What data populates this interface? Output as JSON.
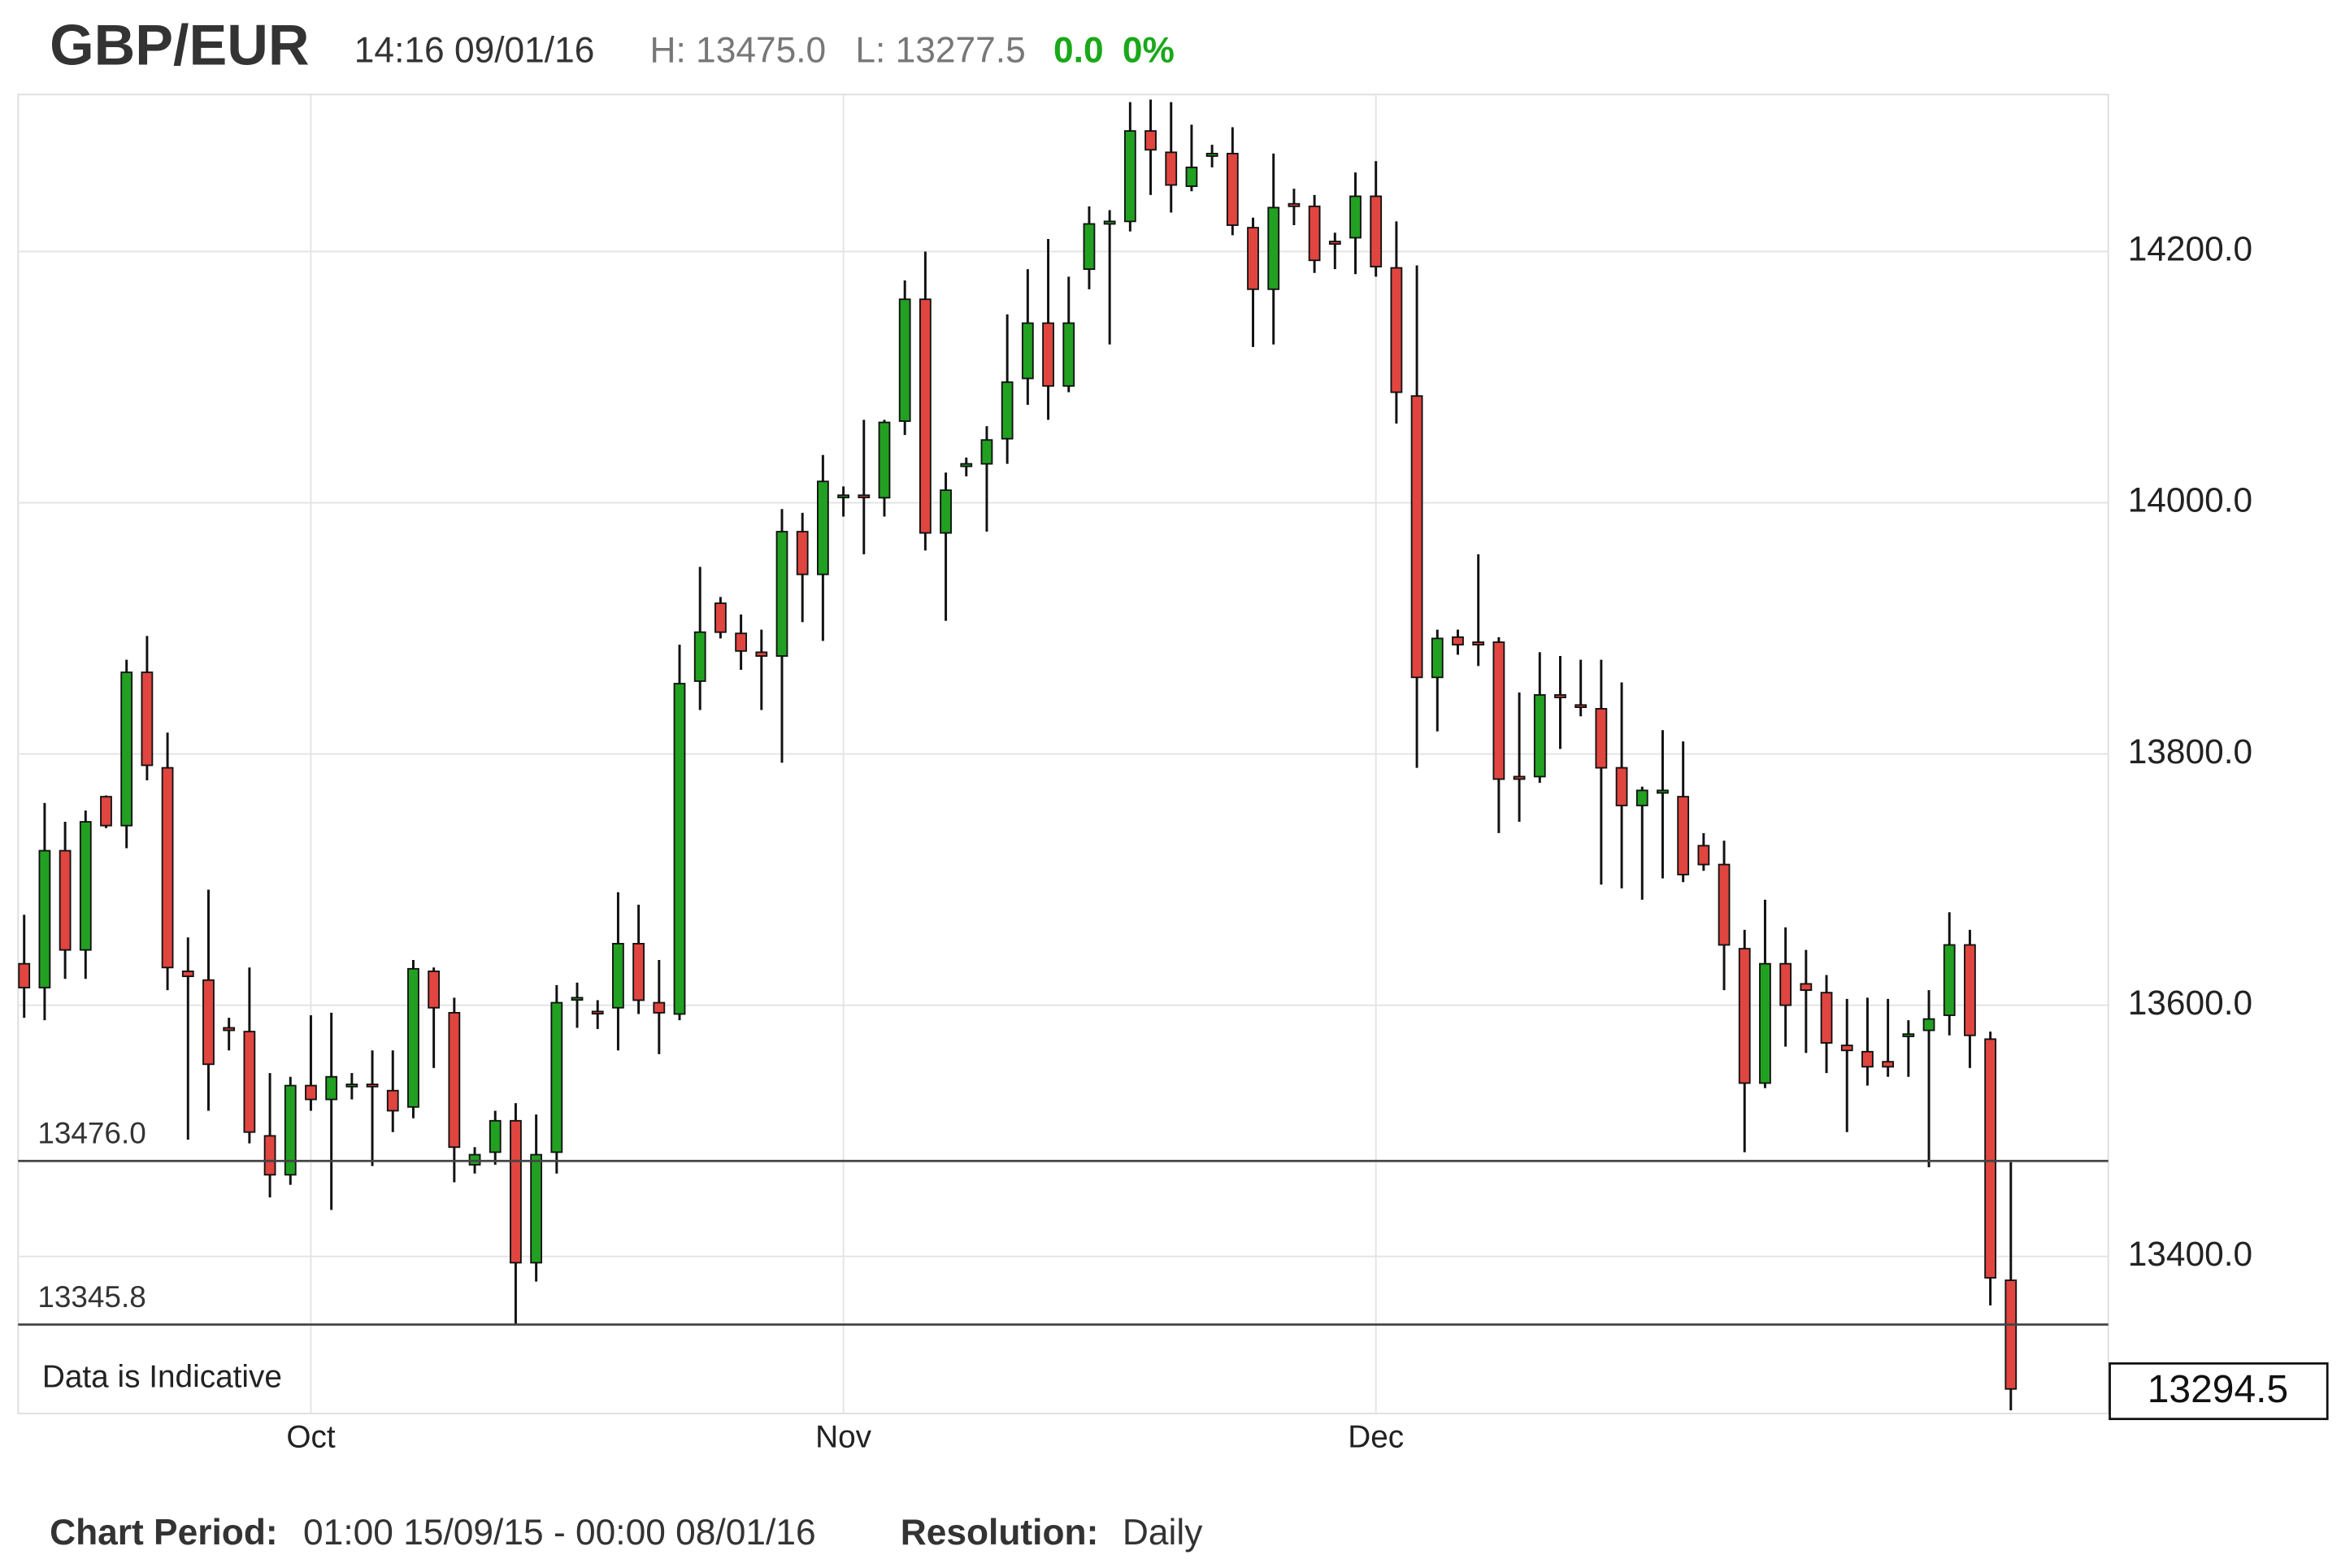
{
  "header": {
    "title": "GBP/EUR",
    "time": "14:16 09/01/16",
    "high": "H: 13475.0",
    "low": "L: 13277.5",
    "change": "0.0",
    "change_pct": "0%"
  },
  "footer": {
    "period_label": "Chart Period:",
    "period": "01:00 15/09/15 - 00:00 08/01/16",
    "resolution_label": "Resolution:",
    "resolution": "Daily"
  },
  "chart_data": {
    "type": "candlestick",
    "note": "Data is Indicative",
    "categories": [
      null,
      null,
      null,
      null,
      null,
      null,
      null,
      null,
      null,
      null,
      null,
      null,
      null,
      null,
      "Oct",
      null,
      null,
      null,
      null,
      null,
      null,
      null,
      null,
      null,
      null,
      null,
      null,
      null,
      null,
      null,
      null,
      null,
      null,
      null,
      null,
      null,
      null,
      null,
      null,
      null,
      "Nov",
      null,
      null,
      null,
      null,
      null,
      null,
      null,
      null,
      null,
      null,
      null,
      null,
      null,
      null,
      null,
      null,
      null,
      null,
      null,
      null,
      null,
      null,
      null,
      null,
      null,
      "Dec",
      null,
      null,
      null,
      null,
      null,
      null,
      null,
      null,
      null,
      null,
      null,
      null,
      null,
      null,
      null,
      null,
      null,
      null,
      null,
      null,
      null,
      null,
      null,
      null,
      null,
      null,
      null,
      null,
      null,
      null,
      null
    ],
    "open": [
      13633,
      13614,
      13723,
      13644,
      13766,
      13743,
      13865,
      13789,
      13627,
      13620,
      13582,
      13579,
      13496,
      13465,
      13536,
      13525,
      13536,
      13537,
      13532,
      13519,
      13627,
      13594,
      13473,
      13483,
      13508,
      13395,
      13483,
      13605,
      13595,
      13598,
      13649,
      13602,
      13593,
      13858,
      13920,
      13896,
      13881,
      13878,
      13977,
      13943,
      14005,
      14006,
      14004,
      14065,
      14162,
      13976,
      14029,
      14031,
      14051,
      14099,
      14143,
      14093,
      14186,
      14222,
      14224,
      14296,
      14279,
      14252,
      14276,
      14278,
      14219,
      14170,
      14238,
      14236,
      14208,
      14211,
      14244,
      14187,
      14085,
      13861,
      13893,
      13889,
      13889,
      13782,
      13782,
      13847,
      13839,
      13836,
      13789,
      13759,
      13769,
      13766,
      13727,
      13712,
      13645,
      13538,
      13633,
      13617,
      13610,
      13568,
      13563,
      13555,
      13576,
      13580,
      13592,
      13648,
      13573,
      13381
    ],
    "high": [
      13672,
      13761,
      13746,
      13755,
      13767,
      13875,
      13894,
      13817,
      13654,
      13692,
      13590,
      13630,
      13546,
      13543,
      13592,
      13594,
      13546,
      13564,
      13564,
      13636,
      13630,
      13606,
      13487,
      13516,
      13522,
      13513,
      13616,
      13618,
      13604,
      13690,
      13680,
      13636,
      13887,
      13949,
      13925,
      13911,
      13899,
      13995,
      13992,
      14038,
      14013,
      14066,
      14066,
      14177,
      14200,
      14024,
      14036,
      14061,
      14150,
      14186,
      14210,
      14180,
      14236,
      14233,
      14319,
      14321,
      14319,
      14301,
      14285,
      14299,
      14227,
      14278,
      14250,
      14245,
      14215,
      14263,
      14272,
      14224,
      14189,
      13899,
      13899,
      13959,
      13893,
      13849,
      13881,
      13878,
      13875,
      13875,
      13857,
      13774,
      13819,
      13810,
      13737,
      13731,
      13660,
      13684,
      13662,
      13644,
      13624,
      13605,
      13606,
      13605,
      13588,
      13612,
      13674,
      13660,
      13579,
      13475
    ],
    "low": [
      13590,
      13588,
      13621,
      13621,
      13741,
      13725,
      13779,
      13612,
      13493,
      13516,
      13564,
      13490,
      13447,
      13457,
      13516,
      13437,
      13525,
      13472,
      13499,
      13510,
      13550,
      13459,
      13466,
      13473,
      13346,
      13380,
      13466,
      13582,
      13581,
      13564,
      13593,
      13561,
      13588,
      13835,
      13892,
      13867,
      13835,
      13793,
      13905,
      13890,
      13989,
      13959,
      13989,
      14054,
      13962,
      13906,
      14021,
      13977,
      14031,
      14078,
      14066,
      14088,
      14170,
      14126,
      14216,
      14245,
      14231,
      14248,
      14267,
      14213,
      14124,
      14126,
      14221,
      14183,
      14186,
      14182,
      14180,
      14063,
      13789,
      13818,
      13879,
      13870,
      13737,
      13746,
      13777,
      13804,
      13830,
      13696,
      13693,
      13684,
      13701,
      13698,
      13707,
      13612,
      13483,
      13534,
      13567,
      13562,
      13546,
      13499,
      13536,
      13543,
      13543,
      13471,
      13576,
      13550,
      13361,
      13277.5
    ],
    "close": [
      13614,
      13723,
      13644,
      13746,
      13743,
      13865,
      13791,
      13630,
      13623,
      13553,
      13580,
      13499,
      13465,
      13536,
      13525,
      13543,
      13537,
      13536,
      13516,
      13629,
      13598,
      13487,
      13481,
      13508,
      13395,
      13481,
      13602,
      13606,
      13594,
      13649,
      13604,
      13594,
      13856,
      13897,
      13897,
      13882,
      13878,
      13977,
      13943,
      14017,
      14006,
      14005,
      14064,
      14162,
      13976,
      14010,
      14031,
      14050,
      14096,
      14143,
      14093,
      14143,
      14222,
      14224,
      14296,
      14281,
      14253,
      14267,
      14278,
      14221,
      14170,
      14235,
      14236,
      14193,
      14206,
      14244,
      14188,
      14088,
      13861,
      13892,
      13887,
      13887,
      13780,
      13780,
      13847,
      13845,
      13838,
      13789,
      13759,
      13771,
      13771,
      13704,
      13712,
      13648,
      13538,
      13633,
      13600,
      13612,
      13570,
      13564,
      13551,
      13551,
      13577,
      13589,
      13648,
      13576,
      13383,
      13294.5
    ],
    "up_color": "#22a022",
    "down_color": "#e0453f",
    "ylim": [
      13275,
      14325
    ],
    "yticks": [
      {
        "value": 13400,
        "label": "13400.0"
      },
      {
        "value": 13600,
        "label": "13600.0"
      },
      {
        "value": 13800,
        "label": "13800.0"
      },
      {
        "value": 14000,
        "label": "14000.0"
      },
      {
        "value": 14200,
        "label": "14200.0"
      }
    ],
    "reference_lines": [
      {
        "value": 13476,
        "label": "13476.0"
      },
      {
        "value": 13345.8,
        "label": "13345.8"
      }
    ],
    "last_price": {
      "value": 13294.5,
      "label": "13294.5"
    },
    "grid": true
  }
}
